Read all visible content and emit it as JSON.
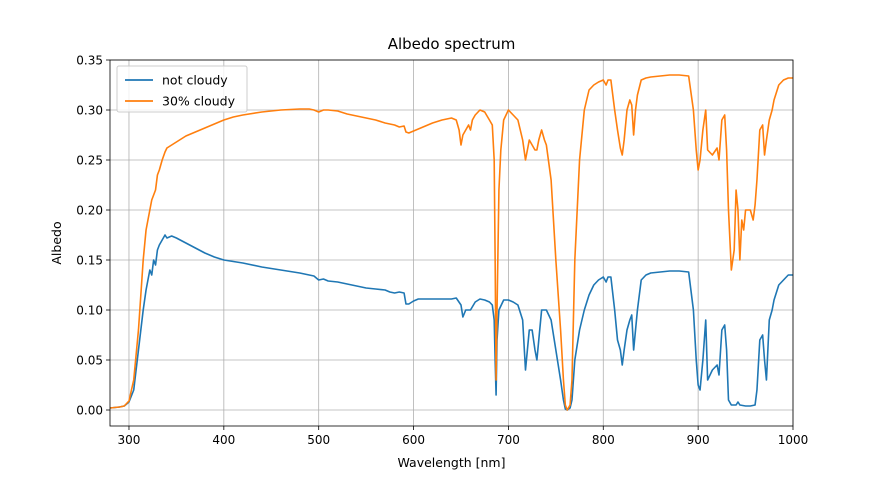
{
  "chart_data": {
    "type": "line",
    "title": "Albedo spectrum",
    "xlabel": "Wavelength [nm]",
    "ylabel": "Albedo",
    "xlim": [
      280,
      1000
    ],
    "ylim": [
      -0.016,
      0.35
    ],
    "xticks": [
      300,
      400,
      500,
      600,
      700,
      800,
      900,
      1000
    ],
    "yticks": [
      0.0,
      0.05,
      0.1,
      0.15,
      0.2,
      0.25,
      0.3,
      0.35
    ],
    "xtick_labels": [
      "300",
      "400",
      "500",
      "600",
      "700",
      "800",
      "900",
      "1000"
    ],
    "ytick_labels": [
      "0.00",
      "0.05",
      "0.10",
      "0.15",
      "0.20",
      "0.25",
      "0.30",
      "0.35"
    ],
    "grid": true,
    "legend": "top-left",
    "series": [
      {
        "name": "not cloudy",
        "color": "#1f77b4",
        "points": [
          [
            280,
            0.002
          ],
          [
            290,
            0.003
          ],
          [
            295,
            0.004
          ],
          [
            300,
            0.008
          ],
          [
            305,
            0.02
          ],
          [
            310,
            0.06
          ],
          [
            315,
            0.1
          ],
          [
            318,
            0.12
          ],
          [
            320,
            0.13
          ],
          [
            322,
            0.14
          ],
          [
            324,
            0.135
          ],
          [
            326,
            0.15
          ],
          [
            328,
            0.145
          ],
          [
            330,
            0.16
          ],
          [
            332,
            0.165
          ],
          [
            335,
            0.17
          ],
          [
            338,
            0.175
          ],
          [
            340,
            0.172
          ],
          [
            345,
            0.174
          ],
          [
            350,
            0.172
          ],
          [
            360,
            0.167
          ],
          [
            370,
            0.162
          ],
          [
            380,
            0.157
          ],
          [
            390,
            0.153
          ],
          [
            400,
            0.15
          ],
          [
            420,
            0.147
          ],
          [
            440,
            0.143
          ],
          [
            460,
            0.14
          ],
          [
            480,
            0.137
          ],
          [
            495,
            0.134
          ],
          [
            500,
            0.13
          ],
          [
            505,
            0.131
          ],
          [
            510,
            0.129
          ],
          [
            520,
            0.128
          ],
          [
            530,
            0.126
          ],
          [
            540,
            0.124
          ],
          [
            550,
            0.122
          ],
          [
            560,
            0.121
          ],
          [
            570,
            0.12
          ],
          [
            575,
            0.118
          ],
          [
            580,
            0.117
          ],
          [
            585,
            0.118
          ],
          [
            590,
            0.117
          ],
          [
            592,
            0.106
          ],
          [
            595,
            0.106
          ],
          [
            600,
            0.109
          ],
          [
            605,
            0.111
          ],
          [
            620,
            0.111
          ],
          [
            640,
            0.111
          ],
          [
            645,
            0.112
          ],
          [
            650,
            0.105
          ],
          [
            652,
            0.093
          ],
          [
            655,
            0.1
          ],
          [
            660,
            0.1
          ],
          [
            665,
            0.108
          ],
          [
            670,
            0.111
          ],
          [
            675,
            0.11
          ],
          [
            680,
            0.108
          ],
          [
            683,
            0.105
          ],
          [
            685,
            0.09
          ],
          [
            686,
            0.05
          ],
          [
            687,
            0.015
          ],
          [
            688,
            0.07
          ],
          [
            690,
            0.1
          ],
          [
            695,
            0.11
          ],
          [
            700,
            0.11
          ],
          [
            705,
            0.108
          ],
          [
            710,
            0.105
          ],
          [
            715,
            0.09
          ],
          [
            718,
            0.04
          ],
          [
            720,
            0.06
          ],
          [
            722,
            0.08
          ],
          [
            725,
            0.08
          ],
          [
            728,
            0.06
          ],
          [
            730,
            0.05
          ],
          [
            732,
            0.07
          ],
          [
            735,
            0.1
          ],
          [
            740,
            0.1
          ],
          [
            745,
            0.09
          ],
          [
            750,
            0.06
          ],
          [
            755,
            0.03
          ],
          [
            758,
            0.01
          ],
          [
            760,
            0.001
          ],
          [
            762,
            0.0
          ],
          [
            765,
            0.002
          ],
          [
            767,
            0.01
          ],
          [
            770,
            0.05
          ],
          [
            775,
            0.08
          ],
          [
            780,
            0.1
          ],
          [
            785,
            0.115
          ],
          [
            790,
            0.125
          ],
          [
            795,
            0.13
          ],
          [
            800,
            0.133
          ],
          [
            803,
            0.128
          ],
          [
            805,
            0.133
          ],
          [
            808,
            0.133
          ],
          [
            812,
            0.1
          ],
          [
            815,
            0.07
          ],
          [
            818,
            0.06
          ],
          [
            820,
            0.045
          ],
          [
            822,
            0.06
          ],
          [
            825,
            0.08
          ],
          [
            828,
            0.09
          ],
          [
            830,
            0.095
          ],
          [
            832,
            0.06
          ],
          [
            834,
            0.08
          ],
          [
            836,
            0.1
          ],
          [
            840,
            0.13
          ],
          [
            845,
            0.135
          ],
          [
            850,
            0.137
          ],
          [
            860,
            0.138
          ],
          [
            870,
            0.139
          ],
          [
            880,
            0.139
          ],
          [
            890,
            0.138
          ],
          [
            895,
            0.1
          ],
          [
            898,
            0.05
          ],
          [
            900,
            0.025
          ],
          [
            902,
            0.02
          ],
          [
            905,
            0.05
          ],
          [
            908,
            0.09
          ],
          [
            910,
            0.03
          ],
          [
            915,
            0.04
          ],
          [
            920,
            0.045
          ],
          [
            922,
            0.035
          ],
          [
            925,
            0.08
          ],
          [
            928,
            0.085
          ],
          [
            930,
            0.06
          ],
          [
            932,
            0.01
          ],
          [
            935,
            0.005
          ],
          [
            940,
            0.005
          ],
          [
            942,
            0.008
          ],
          [
            944,
            0.005
          ],
          [
            950,
            0.004
          ],
          [
            955,
            0.004
          ],
          [
            960,
            0.005
          ],
          [
            962,
            0.02
          ],
          [
            965,
            0.07
          ],
          [
            968,
            0.075
          ],
          [
            970,
            0.05
          ],
          [
            972,
            0.03
          ],
          [
            975,
            0.09
          ],
          [
            978,
            0.1
          ],
          [
            980,
            0.11
          ],
          [
            985,
            0.125
          ],
          [
            990,
            0.13
          ],
          [
            995,
            0.135
          ],
          [
            1000,
            0.135
          ]
        ]
      },
      {
        "name": "30% cloudy",
        "color": "#ff7f0e",
        "points": [
          [
            280,
            0.002
          ],
          [
            290,
            0.003
          ],
          [
            295,
            0.004
          ],
          [
            300,
            0.009
          ],
          [
            305,
            0.03
          ],
          [
            310,
            0.08
          ],
          [
            315,
            0.15
          ],
          [
            318,
            0.18
          ],
          [
            320,
            0.19
          ],
          [
            322,
            0.2
          ],
          [
            324,
            0.21
          ],
          [
            326,
            0.215
          ],
          [
            328,
            0.22
          ],
          [
            330,
            0.235
          ],
          [
            332,
            0.24
          ],
          [
            335,
            0.25
          ],
          [
            338,
            0.258
          ],
          [
            340,
            0.262
          ],
          [
            345,
            0.265
          ],
          [
            350,
            0.268
          ],
          [
            360,
            0.274
          ],
          [
            370,
            0.278
          ],
          [
            380,
            0.282
          ],
          [
            390,
            0.286
          ],
          [
            400,
            0.29
          ],
          [
            410,
            0.293
          ],
          [
            420,
            0.295
          ],
          [
            440,
            0.298
          ],
          [
            460,
            0.3
          ],
          [
            480,
            0.301
          ],
          [
            490,
            0.301
          ],
          [
            495,
            0.3
          ],
          [
            500,
            0.298
          ],
          [
            505,
            0.3
          ],
          [
            510,
            0.3
          ],
          [
            520,
            0.299
          ],
          [
            530,
            0.296
          ],
          [
            540,
            0.294
          ],
          [
            550,
            0.292
          ],
          [
            560,
            0.29
          ],
          [
            570,
            0.287
          ],
          [
            580,
            0.285
          ],
          [
            585,
            0.283
          ],
          [
            590,
            0.284
          ],
          [
            592,
            0.278
          ],
          [
            595,
            0.277
          ],
          [
            600,
            0.279
          ],
          [
            610,
            0.283
          ],
          [
            620,
            0.287
          ],
          [
            630,
            0.29
          ],
          [
            640,
            0.292
          ],
          [
            645,
            0.29
          ],
          [
            648,
            0.28
          ],
          [
            650,
            0.265
          ],
          [
            652,
            0.275
          ],
          [
            655,
            0.28
          ],
          [
            658,
            0.285
          ],
          [
            660,
            0.28
          ],
          [
            662,
            0.29
          ],
          [
            665,
            0.295
          ],
          [
            670,
            0.3
          ],
          [
            675,
            0.298
          ],
          [
            680,
            0.29
          ],
          [
            683,
            0.285
          ],
          [
            685,
            0.25
          ],
          [
            686,
            0.15
          ],
          [
            687,
            0.03
          ],
          [
            688,
            0.1
          ],
          [
            690,
            0.22
          ],
          [
            692,
            0.26
          ],
          [
            695,
            0.29
          ],
          [
            700,
            0.3
          ],
          [
            705,
            0.295
          ],
          [
            710,
            0.29
          ],
          [
            715,
            0.27
          ],
          [
            718,
            0.25
          ],
          [
            720,
            0.26
          ],
          [
            722,
            0.27
          ],
          [
            725,
            0.265
          ],
          [
            728,
            0.26
          ],
          [
            730,
            0.26
          ],
          [
            732,
            0.27
          ],
          [
            735,
            0.28
          ],
          [
            738,
            0.27
          ],
          [
            740,
            0.265
          ],
          [
            745,
            0.23
          ],
          [
            750,
            0.15
          ],
          [
            755,
            0.08
          ],
          [
            758,
            0.03
          ],
          [
            760,
            0.005
          ],
          [
            762,
            0.0
          ],
          [
            765,
            0.005
          ],
          [
            767,
            0.03
          ],
          [
            770,
            0.15
          ],
          [
            775,
            0.25
          ],
          [
            780,
            0.3
          ],
          [
            785,
            0.32
          ],
          [
            790,
            0.325
          ],
          [
            795,
            0.328
          ],
          [
            800,
            0.33
          ],
          [
            803,
            0.325
          ],
          [
            805,
            0.33
          ],
          [
            808,
            0.33
          ],
          [
            812,
            0.3
          ],
          [
            815,
            0.28
          ],
          [
            818,
            0.262
          ],
          [
            820,
            0.255
          ],
          [
            822,
            0.27
          ],
          [
            825,
            0.3
          ],
          [
            828,
            0.31
          ],
          [
            830,
            0.305
          ],
          [
            832,
            0.275
          ],
          [
            834,
            0.3
          ],
          [
            836,
            0.315
          ],
          [
            840,
            0.33
          ],
          [
            845,
            0.332
          ],
          [
            850,
            0.333
          ],
          [
            860,
            0.334
          ],
          [
            870,
            0.335
          ],
          [
            880,
            0.335
          ],
          [
            890,
            0.334
          ],
          [
            895,
            0.3
          ],
          [
            898,
            0.26
          ],
          [
            900,
            0.24
          ],
          [
            902,
            0.25
          ],
          [
            905,
            0.28
          ],
          [
            908,
            0.3
          ],
          [
            910,
            0.26
          ],
          [
            915,
            0.255
          ],
          [
            920,
            0.262
          ],
          [
            922,
            0.25
          ],
          [
            925,
            0.29
          ],
          [
            928,
            0.295
          ],
          [
            930,
            0.26
          ],
          [
            932,
            0.2
          ],
          [
            935,
            0.14
          ],
          [
            938,
            0.16
          ],
          [
            940,
            0.22
          ],
          [
            942,
            0.2
          ],
          [
            944,
            0.15
          ],
          [
            946,
            0.19
          ],
          [
            948,
            0.18
          ],
          [
            950,
            0.2
          ],
          [
            955,
            0.2
          ],
          [
            958,
            0.19
          ],
          [
            960,
            0.205
          ],
          [
            962,
            0.23
          ],
          [
            965,
            0.28
          ],
          [
            968,
            0.285
          ],
          [
            970,
            0.255
          ],
          [
            972,
            0.27
          ],
          [
            975,
            0.29
          ],
          [
            978,
            0.3
          ],
          [
            980,
            0.31
          ],
          [
            985,
            0.325
          ],
          [
            990,
            0.33
          ],
          [
            995,
            0.332
          ],
          [
            1000,
            0.332
          ]
        ]
      }
    ]
  }
}
